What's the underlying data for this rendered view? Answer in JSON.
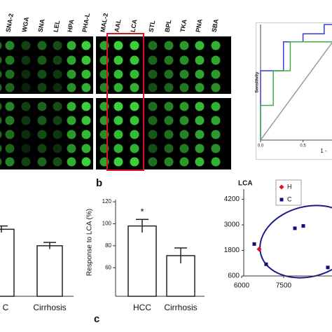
{
  "figure": {
    "lectins": [
      {
        "label": "SNA-2",
        "color": "#111111"
      },
      {
        "label": "WGA",
        "color": "#111111"
      },
      {
        "label": "SNA",
        "color": "#111111"
      },
      {
        "label": "LEL",
        "color": "#111111"
      },
      {
        "label": "HPA",
        "color": "#111111"
      },
      {
        "label": "PHA-L",
        "color": "#111111"
      },
      {
        "label": "MAL-2",
        "color": "#111111"
      },
      {
        "label": "AAL",
        "color": "#e0101e"
      },
      {
        "label": "LCA",
        "color": "#e0101e"
      },
      {
        "label": "STL",
        "color": "#111111"
      },
      {
        "label": "BPL",
        "color": "#111111"
      },
      {
        "label": "TKA",
        "color": "#111111"
      },
      {
        "label": "PNA",
        "color": "#111111"
      },
      {
        "label": "SBA",
        "color": "#111111"
      }
    ],
    "panel_labels": [
      "b",
      "c"
    ]
  },
  "chart_data": [
    {
      "type": "line",
      "ylabel": "Sensitivity",
      "xlabel": "1 -",
      "xlim": [
        0,
        0.85
      ],
      "ylim": [
        0,
        1
      ],
      "xticks": [
        {
          "value": 0,
          "label": "0.0"
        },
        {
          "value": 0.5,
          "label": "0.5"
        }
      ],
      "series": [
        {
          "color": "#3a3ad0",
          "x": [
            0,
            0,
            0.27,
            0.27,
            0.5,
            0.5,
            0.75,
            0.75,
            0.85
          ],
          "values": [
            0,
            0.6,
            0.6,
            0.85,
            0.85,
            0.92,
            0.92,
            1,
            1
          ]
        },
        {
          "color": "#3cb043",
          "x": [
            0,
            0,
            0.15,
            0.15,
            0.35,
            0.35,
            0.85
          ],
          "values": [
            0,
            0.3,
            0.3,
            0.6,
            0.6,
            0.85,
            0.85
          ]
        },
        {
          "color": "#999999",
          "x": [
            0,
            0.85
          ],
          "values": [
            0,
            0.85
          ]
        }
      ]
    },
    {
      "type": "bar",
      "categories": [
        "C",
        "Cirrhosis"
      ],
      "values": [
        95,
        80
      ],
      "errors": [
        3,
        3
      ],
      "ylim": [
        34,
        122
      ]
    },
    {
      "type": "bar",
      "ylabel": "Response to LCA (%)",
      "categories": [
        "HCC",
        "Cirrhosis"
      ],
      "values": [
        98,
        71
      ],
      "errors": [
        6,
        7
      ],
      "annotation": "*",
      "ylim": [
        34,
        122
      ],
      "yticks": [
        60,
        80,
        100,
        120
      ]
    },
    {
      "type": "scatter",
      "title": "LCA",
      "xlim": [
        6000,
        9225
      ],
      "ylim": [
        600,
        4680
      ],
      "xticks": [
        6000,
        7500
      ],
      "yticks": [
        600,
        1800,
        3000,
        4200
      ],
      "series": [
        {
          "name": "H",
          "color": "#e0101e",
          "marker": "diamond",
          "x": [
            6625
          ],
          "values": [
            1860
          ]
        },
        {
          "name": "C",
          "color": "#10107a",
          "marker": "square",
          "x": [
            6450,
            6875,
            7900,
            8200,
            9075
          ],
          "values": [
            2100,
            1150,
            2840,
            2950,
            1000
          ]
        }
      ]
    }
  ]
}
